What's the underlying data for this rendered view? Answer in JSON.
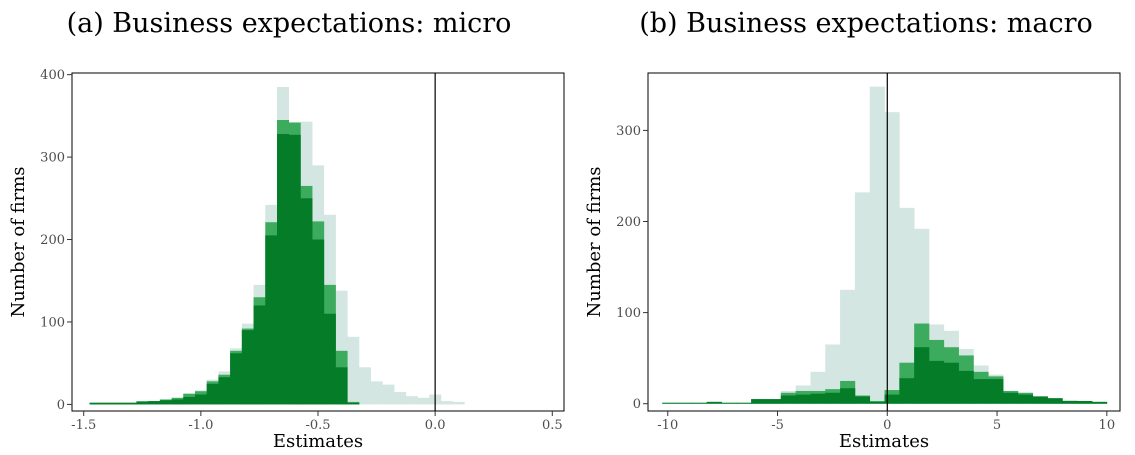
{
  "colors": {
    "all": "#d3e6e2",
    "mid": "#3cab5e",
    "sig": "#047c28",
    "frame": "#000000",
    "vline": "#000000"
  },
  "chart_data": [
    {
      "type": "bar",
      "title": "(a) Business expectations: micro",
      "xlabel": "Estimates",
      "ylabel": "Number of firms",
      "xlim": [
        -1.55,
        0.55
      ],
      "ylim": [
        -8,
        402
      ],
      "xticks": [
        -1.5,
        -1.0,
        -0.5,
        0.0,
        0.5
      ],
      "xtick_labels": [
        "-1.5",
        "-1.0",
        "-0.5",
        "0.0",
        "0.5"
      ],
      "yticks": [
        0,
        100,
        200,
        300,
        400
      ],
      "ytick_labels": [
        "0",
        "100",
        "200",
        "300",
        "400"
      ],
      "vline": 0,
      "bin_start": -1.475,
      "bin_width": 0.05,
      "series": [
        {
          "key": "all",
          "values": [
            2,
            2,
            2,
            2,
            4,
            4,
            6,
            8,
            13,
            17,
            30,
            40,
            68,
            98,
            145,
            242,
            385,
            315,
            343,
            290,
            230,
            138,
            82,
            45,
            28,
            24,
            15,
            10,
            8,
            12,
            4,
            3
          ]
        },
        {
          "key": "mid",
          "values": [
            2,
            2,
            2,
            2,
            4,
            4,
            6,
            8,
            13,
            16,
            28,
            36,
            65,
            92,
            130,
            221,
            345,
            342,
            265,
            222,
            145,
            65,
            3,
            0,
            0,
            0,
            0,
            0,
            0,
            0,
            0,
            0
          ]
        },
        {
          "key": "sig",
          "values": [
            2,
            2,
            2,
            2,
            3,
            4,
            5,
            6,
            9,
            12,
            25,
            33,
            62,
            90,
            120,
            205,
            328,
            327,
            250,
            200,
            110,
            45,
            2,
            0,
            0,
            0,
            0,
            0,
            0,
            0,
            0,
            0
          ]
        }
      ],
      "grid": false
    },
    {
      "type": "bar",
      "title": "(b) Business expectations: macro",
      "xlabel": "Estimates",
      "ylabel": "Number of firms",
      "xlim": [
        -10.9,
        10.6
      ],
      "ylim": [
        -8,
        363
      ],
      "xticks": [
        -10,
        -5,
        0,
        5,
        10
      ],
      "xtick_labels": [
        "-10",
        "-5",
        "0",
        "5",
        "10"
      ],
      "yticks": [
        0,
        100,
        200,
        300
      ],
      "ytick_labels": [
        "0",
        "100",
        "200",
        "300"
      ],
      "vline": 0,
      "bin_start": -10.25,
      "bin_width": 0.675,
      "series": [
        {
          "key": "all",
          "values": [
            1,
            1,
            1,
            2,
            1,
            1,
            5,
            5,
            14,
            20,
            35,
            65,
            125,
            232,
            348,
            320,
            215,
            192,
            87,
            80,
            60,
            42,
            32,
            14,
            12,
            8,
            6,
            4,
            3,
            2
          ]
        },
        {
          "key": "mid",
          "values": [
            1,
            1,
            1,
            2,
            1,
            1,
            5,
            5,
            12,
            14,
            14,
            16,
            25,
            9,
            3,
            15,
            45,
            88,
            70,
            62,
            53,
            35,
            30,
            14,
            12,
            8,
            6,
            3,
            3,
            2
          ]
        },
        {
          "key": "sig",
          "values": [
            1,
            1,
            1,
            2,
            1,
            1,
            5,
            5,
            9,
            10,
            11,
            12,
            17,
            8,
            2,
            10,
            28,
            62,
            47,
            45,
            36,
            27,
            27,
            12,
            10,
            8,
            6,
            3,
            3,
            2
          ]
        }
      ],
      "grid": false
    }
  ]
}
